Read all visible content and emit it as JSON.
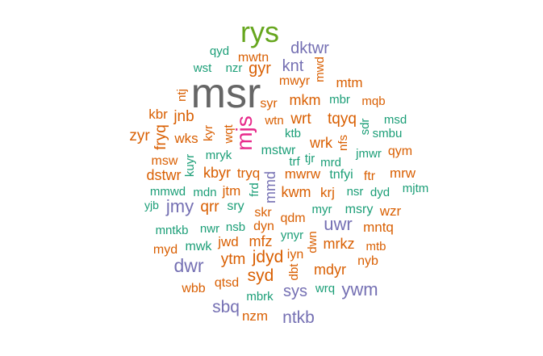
{
  "palette": {
    "orange": "#d95f02",
    "teal": "#1b9e77",
    "purple": "#7570b3",
    "green": "#66a61e",
    "pink": "#e7298a",
    "gray": "#666666"
  },
  "words": [
    {
      "text": "msr",
      "color": "gray"
    },
    {
      "text": "rys",
      "color": "green"
    },
    {
      "text": "mjs",
      "color": "pink"
    },
    {
      "text": "dktwr",
      "color": "purple"
    },
    {
      "text": "qyd",
      "color": "teal"
    },
    {
      "text": "mwtn",
      "color": "orange"
    },
    {
      "text": "wst",
      "color": "teal"
    },
    {
      "text": "nzr",
      "color": "teal"
    },
    {
      "text": "gyr",
      "color": "orange"
    },
    {
      "text": "knt",
      "color": "purple"
    },
    {
      "text": "mwd",
      "color": "orange"
    },
    {
      "text": "mwyr",
      "color": "orange"
    },
    {
      "text": "mtm",
      "color": "orange"
    },
    {
      "text": "ntj",
      "color": "orange"
    },
    {
      "text": "syr",
      "color": "orange"
    },
    {
      "text": "mkm",
      "color": "orange"
    },
    {
      "text": "mbr",
      "color": "teal"
    },
    {
      "text": "mqb",
      "color": "orange"
    },
    {
      "text": "kbr",
      "color": "orange"
    },
    {
      "text": "jnb",
      "color": "orange"
    },
    {
      "text": "wtn",
      "color": "orange"
    },
    {
      "text": "wrt",
      "color": "orange"
    },
    {
      "text": "tqyq",
      "color": "orange"
    },
    {
      "text": "sdr",
      "color": "teal"
    },
    {
      "text": "msd",
      "color": "teal"
    },
    {
      "text": "zyr",
      "color": "orange"
    },
    {
      "text": "fryq",
      "color": "orange"
    },
    {
      "text": "wks",
      "color": "orange"
    },
    {
      "text": "kyr",
      "color": "orange"
    },
    {
      "text": "wqt",
      "color": "orange"
    },
    {
      "text": "ktb",
      "color": "teal"
    },
    {
      "text": "nfs",
      "color": "orange"
    },
    {
      "text": "smbu",
      "color": "teal"
    },
    {
      "text": "msw",
      "color": "orange"
    },
    {
      "text": "mryk",
      "color": "teal"
    },
    {
      "text": "mstwr",
      "color": "teal"
    },
    {
      "text": "wrk",
      "color": "orange"
    },
    {
      "text": "jmwr",
      "color": "teal"
    },
    {
      "text": "qym",
      "color": "orange"
    },
    {
      "text": "kuyr",
      "color": "teal"
    },
    {
      "text": "trf",
      "color": "teal"
    },
    {
      "text": "tjr",
      "color": "teal"
    },
    {
      "text": "mrd",
      "color": "teal"
    },
    {
      "text": "dstwr",
      "color": "orange"
    },
    {
      "text": "kbyr",
      "color": "orange"
    },
    {
      "text": "tryq",
      "color": "orange"
    },
    {
      "text": "mmd",
      "color": "purple"
    },
    {
      "text": "mwrw",
      "color": "orange"
    },
    {
      "text": "tnfyi",
      "color": "teal"
    },
    {
      "text": "ftr",
      "color": "orange"
    },
    {
      "text": "mrw",
      "color": "orange"
    },
    {
      "text": "mmwd",
      "color": "teal"
    },
    {
      "text": "mdn",
      "color": "teal"
    },
    {
      "text": "jtm",
      "color": "orange"
    },
    {
      "text": "frd",
      "color": "teal"
    },
    {
      "text": "kwm",
      "color": "orange"
    },
    {
      "text": "krj",
      "color": "orange"
    },
    {
      "text": "nsr",
      "color": "teal"
    },
    {
      "text": "dyd",
      "color": "teal"
    },
    {
      "text": "mjtm",
      "color": "teal"
    },
    {
      "text": "yjb",
      "color": "teal"
    },
    {
      "text": "jmy",
      "color": "purple"
    },
    {
      "text": "qrr",
      "color": "orange"
    },
    {
      "text": "sry",
      "color": "teal"
    },
    {
      "text": "skr",
      "color": "orange"
    },
    {
      "text": "myr",
      "color": "teal"
    },
    {
      "text": "msry",
      "color": "teal"
    },
    {
      "text": "wzr",
      "color": "orange"
    },
    {
      "text": "qdm",
      "color": "orange"
    },
    {
      "text": "uwr",
      "color": "purple"
    },
    {
      "text": "mntkb",
      "color": "teal"
    },
    {
      "text": "nwr",
      "color": "teal"
    },
    {
      "text": "nsb",
      "color": "teal"
    },
    {
      "text": "dyn",
      "color": "orange"
    },
    {
      "text": "mntq",
      "color": "orange"
    },
    {
      "text": "ynyr",
      "color": "teal"
    },
    {
      "text": "myd",
      "color": "orange"
    },
    {
      "text": "mwk",
      "color": "teal"
    },
    {
      "text": "jwd",
      "color": "orange"
    },
    {
      "text": "mfz",
      "color": "orange"
    },
    {
      "text": "dwn",
      "color": "orange"
    },
    {
      "text": "mrkz",
      "color": "orange"
    },
    {
      "text": "mtb",
      "color": "orange"
    },
    {
      "text": "ytm",
      "color": "orange"
    },
    {
      "text": "jdyd",
      "color": "orange"
    },
    {
      "text": "iyn",
      "color": "orange"
    },
    {
      "text": "nyb",
      "color": "orange"
    },
    {
      "text": "dwr",
      "color": "purple"
    },
    {
      "text": "dbt",
      "color": "orange"
    },
    {
      "text": "mdyr",
      "color": "orange"
    },
    {
      "text": "syd",
      "color": "orange"
    },
    {
      "text": "wbb",
      "color": "orange"
    },
    {
      "text": "qtsd",
      "color": "orange"
    },
    {
      "text": "sys",
      "color": "purple"
    },
    {
      "text": "wrq",
      "color": "teal"
    },
    {
      "text": "ywm",
      "color": "purple"
    },
    {
      "text": "mbrk",
      "color": "teal"
    },
    {
      "text": "sbq",
      "color": "purple"
    },
    {
      "text": "nzm",
      "color": "orange"
    },
    {
      "text": "ntkb",
      "color": "purple"
    }
  ]
}
